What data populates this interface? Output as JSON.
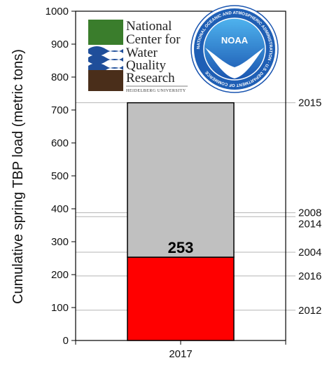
{
  "chart_data": {
    "type": "bar",
    "ylabel": "Cumulative spring TBP load (metric tons)",
    "xlabel": "",
    "ylim": [
      0,
      1000
    ],
    "yticks": [
      0,
      100,
      200,
      300,
      400,
      500,
      600,
      700,
      800,
      900,
      1000
    ],
    "categories": [
      "2017"
    ],
    "stack": [
      {
        "name": "",
        "value": 253,
        "color": "#ff0000"
      },
      {
        "name": "",
        "value": 469,
        "color": "#c0c0c0"
      }
    ],
    "total": 722,
    "data_label": "253",
    "reference_lines": [
      {
        "label": "2015",
        "value": 722
      },
      {
        "label": "2008",
        "value": 388
      },
      {
        "label": "2014",
        "value": 376
      },
      {
        "label": "2004",
        "value": 268
      },
      {
        "label": "2016",
        "value": 196
      },
      {
        "label": "2012",
        "value": 92
      }
    ],
    "grid": false
  },
  "logos": {
    "ncwqr": {
      "lines": [
        "National",
        "Center for",
        "Water",
        "Quality",
        "Research"
      ],
      "subtitle": "HEIDELBERG UNIVERSITY"
    },
    "noaa": {
      "name": "NOAA",
      "ring_text": "NATIONAL OCEANIC AND ATMOSPHERIC ADMINISTRATION · U.S. DEPARTMENT OF COMMERCE"
    },
    "colors": {
      "ncwqr_green": "#3a7d2c",
      "ncwqr_blue": "#1f4e9a",
      "ncwqr_brown": "#4a2e1a",
      "noaa_blue": "#1f5fb5",
      "noaa_light": "#3aa0e0"
    }
  }
}
